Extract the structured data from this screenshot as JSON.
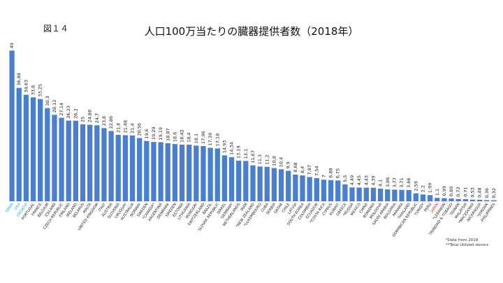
{
  "fig_label": "図１４",
  "chart_data": {
    "type": "bar",
    "title": "人口100万当たりの臓器提供者数（2018年）",
    "xlabel": "",
    "ylabel": "",
    "ylim": [
      0,
      50
    ],
    "grid": false,
    "bar_color": "#4a7fcf",
    "categories": [
      "SPAIN",
      "USA",
      "CROATIA",
      "PORTUGAL",
      "FRANCE",
      "BELGIUM",
      "ICELAND",
      "CZECH REPUBLIC",
      "FINLAND",
      "IRELAND",
      "BELARUS",
      "MALTA",
      "UNITED KINGDOM",
      "ITALY",
      "AUSTRIA",
      "SLOVENIA",
      "URUGUAY",
      "AUSTRALIA",
      "NORWAY",
      "SWEDEN",
      "*CANADA*",
      "ARGENTINA",
      "DENMARK",
      "SWEDEN",
      "ESTONIA",
      "LITHUANIA",
      "HUNGARY",
      "SWITZERLAND",
      "BRAZIL",
      "SLOVAK REPUBLIC",
      "ISRAEL",
      "GERMANY",
      "NETHERLANDS",
      "IRAN",
      "*NEW ZEALAND",
      "*LUXEMBOURG",
      "CUBA",
      "SERBIA",
      "QATAR",
      "CHILE",
      "LATVIA",
      "SOUTH KOREA",
      "COLOMBIA",
      "ECUADOR",
      "*COSTA RICA",
      "CYPRUS",
      "KUWAIT",
      "GREECE",
      "*RUSSIA",
      "MEXICO",
      "CHINA",
      "ROMANIA",
      "MOLDOVA",
      "SAUDI ARABIA",
      "BULGARIA",
      "PANAMA",
      "THAILAND",
      "DOMINICAN REPUBLIC",
      "TURKEY",
      "PERU",
      "JAPAN",
      "*LEBANON",
      "TRINIDAD & TOBAGO",
      "TAIWAN",
      "MALAYSIA",
      "*MACEDONIA",
      "NICARAGUA",
      "*JORDAN",
      "PHILIPPINES"
    ],
    "values": [
      49,
      36.88,
      34.63,
      33.8,
      33.25,
      30.3,
      28.12,
      27.14,
      26.23,
      26.2,
      25,
      24.88,
      24.7,
      23.8,
      22.86,
      21.6,
      21.48,
      21.4,
      20.56,
      19.6,
      19.29,
      19.19,
      18.87,
      18.6,
      18.42,
      18.4,
      18.1,
      17.96,
      17.39,
      17.18,
      14.93,
      14.34,
      13.19,
      13.1,
      11.67,
      11.3,
      11.2,
      10.8,
      10.4,
      9.9,
      8.68,
      8.4,
      7.87,
      7.54,
      7,
      6.88,
      6.75,
      5.5,
      4.49,
      4.45,
      4.43,
      4.39,
      4.1,
      3.86,
      3.77,
      3.71,
      3.66,
      2.59,
      2.2,
      1.99,
      1.1,
      0.99,
      0.89,
      0.72,
      0.71,
      0.53,
      0.48,
      0.36,
      0.32
    ],
    "value_labels": [
      "49",
      "36,88",
      "34,63",
      "33,8",
      "33,25",
      "30,3",
      "28,12",
      "27,14",
      "26,23",
      "26,2",
      "25",
      "24,88",
      "24,7",
      "23,8",
      "22,86",
      "21,6",
      "21,48",
      "21,4",
      "20,56",
      "19,6",
      "19,29",
      "19,19",
      "18,87",
      "18,6",
      "18,42",
      "18,4",
      "18,1",
      "17,96",
      "17,39",
      "17,18",
      "14,93",
      "14,34",
      "13,19",
      "13,1",
      "11,67",
      "11,3",
      "11,2",
      "10,8",
      "10,4",
      "9,9",
      "8,68",
      "8,4",
      "7,87",
      "7,54",
      "7",
      "6,88",
      "6,75",
      "5,5",
      "4,49",
      "4,45",
      "4,43",
      "4,39",
      "4,1",
      "3,86",
      "3,77",
      "3,71",
      "3,66",
      "2,59",
      "2,2",
      "1,99",
      "1,1",
      "0,99",
      "0,89",
      "0,72",
      "0,71",
      "0,53",
      "0,48",
      "0,36",
      "0,32"
    ],
    "highlight": {
      "SPAIN": "#2a9fdf",
      "USA": "#2a9fdf",
      "CROATIA": "#2a9fdf",
      "JAPAN": "#e0302a"
    }
  },
  "notes": [
    "*Date from 2018",
    "**Total Utilized donors"
  ]
}
